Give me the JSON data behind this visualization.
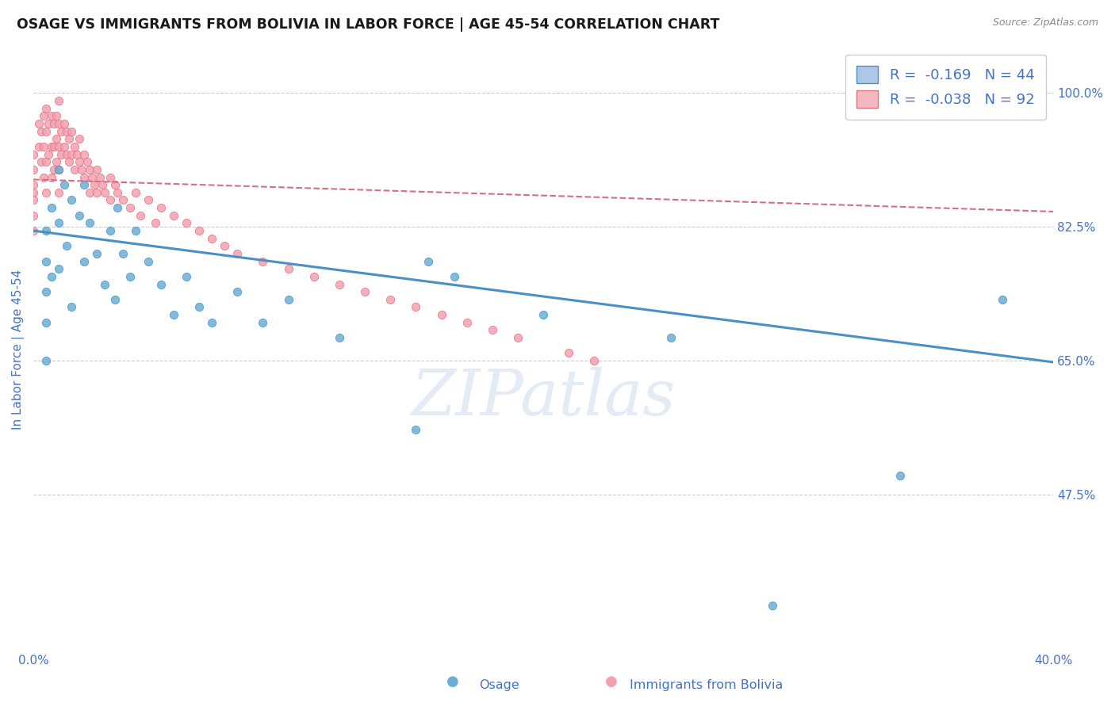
{
  "title": "OSAGE VS IMMIGRANTS FROM BOLIVIA IN LABOR FORCE | AGE 45-54 CORRELATION CHART",
  "source": "Source: ZipAtlas.com",
  "ylabel": "In Labor Force | Age 45-54",
  "xlim": [
    0.0,
    0.4
  ],
  "ylim": [
    0.27,
    1.06
  ],
  "xticks": [
    0.0,
    0.05,
    0.1,
    0.15,
    0.2,
    0.25,
    0.3,
    0.35,
    0.4
  ],
  "yticks": [
    0.475,
    0.65,
    0.825,
    1.0
  ],
  "ytick_labels": [
    "47.5%",
    "65.0%",
    "82.5%",
    "100.0%"
  ],
  "osage_color": "#6aaed6",
  "osage_edge": "#4a90c4",
  "bolivia_color": "#f4a0b0",
  "bolivia_edge": "#e07080",
  "trendline_blue_color": "#4a90c4",
  "trendline_pink_color": "#d47080",
  "grid_color": "#cccccc",
  "axis_color": "#4472c4",
  "background_color": "#ffffff",
  "watermark": "ZIPatlas",
  "legend_blue_face": "#aec6e8",
  "legend_blue_edge": "#4a90c4",
  "legend_pink_face": "#f4b8c1",
  "legend_pink_edge": "#e07080",
  "legend_text_color": "#4472c4",
  "osage_x": [
    0.005,
    0.005,
    0.005,
    0.005,
    0.005,
    0.007,
    0.007,
    0.01,
    0.01,
    0.01,
    0.012,
    0.013,
    0.015,
    0.015,
    0.018,
    0.02,
    0.02,
    0.022,
    0.025,
    0.028,
    0.03,
    0.032,
    0.033,
    0.035,
    0.038,
    0.04,
    0.045,
    0.05,
    0.055,
    0.06,
    0.065,
    0.07,
    0.08,
    0.09,
    0.1,
    0.12,
    0.15,
    0.155,
    0.165,
    0.2,
    0.25,
    0.29,
    0.34,
    0.38
  ],
  "osage_y": [
    0.82,
    0.78,
    0.74,
    0.7,
    0.65,
    0.85,
    0.76,
    0.9,
    0.83,
    0.77,
    0.88,
    0.8,
    0.86,
    0.72,
    0.84,
    0.88,
    0.78,
    0.83,
    0.79,
    0.75,
    0.82,
    0.73,
    0.85,
    0.79,
    0.76,
    0.82,
    0.78,
    0.75,
    0.71,
    0.76,
    0.72,
    0.7,
    0.74,
    0.7,
    0.73,
    0.68,
    0.56,
    0.78,
    0.76,
    0.71,
    0.68,
    0.33,
    0.5,
    0.73
  ],
  "bolivia_x": [
    0.0,
    0.0,
    0.0,
    0.0,
    0.0,
    0.0,
    0.0,
    0.002,
    0.002,
    0.003,
    0.003,
    0.004,
    0.004,
    0.004,
    0.005,
    0.005,
    0.005,
    0.005,
    0.006,
    0.006,
    0.007,
    0.007,
    0.007,
    0.008,
    0.008,
    0.008,
    0.009,
    0.009,
    0.009,
    0.01,
    0.01,
    0.01,
    0.01,
    0.01,
    0.011,
    0.011,
    0.012,
    0.012,
    0.013,
    0.013,
    0.014,
    0.014,
    0.015,
    0.015,
    0.016,
    0.016,
    0.017,
    0.018,
    0.018,
    0.019,
    0.02,
    0.02,
    0.021,
    0.022,
    0.022,
    0.023,
    0.024,
    0.025,
    0.025,
    0.026,
    0.027,
    0.028,
    0.03,
    0.03,
    0.032,
    0.033,
    0.035,
    0.038,
    0.04,
    0.042,
    0.045,
    0.048,
    0.05,
    0.055,
    0.06,
    0.065,
    0.07,
    0.075,
    0.08,
    0.09,
    0.1,
    0.11,
    0.12,
    0.13,
    0.14,
    0.15,
    0.16,
    0.17,
    0.18,
    0.19,
    0.21,
    0.22
  ],
  "bolivia_y": [
    0.92,
    0.9,
    0.88,
    0.87,
    0.86,
    0.84,
    0.82,
    0.96,
    0.93,
    0.95,
    0.91,
    0.97,
    0.93,
    0.89,
    0.98,
    0.95,
    0.91,
    0.87,
    0.96,
    0.92,
    0.97,
    0.93,
    0.89,
    0.96,
    0.93,
    0.9,
    0.97,
    0.94,
    0.91,
    0.99,
    0.96,
    0.93,
    0.9,
    0.87,
    0.95,
    0.92,
    0.96,
    0.93,
    0.95,
    0.92,
    0.94,
    0.91,
    0.95,
    0.92,
    0.93,
    0.9,
    0.92,
    0.94,
    0.91,
    0.9,
    0.92,
    0.89,
    0.91,
    0.9,
    0.87,
    0.89,
    0.88,
    0.9,
    0.87,
    0.89,
    0.88,
    0.87,
    0.89,
    0.86,
    0.88,
    0.87,
    0.86,
    0.85,
    0.87,
    0.84,
    0.86,
    0.83,
    0.85,
    0.84,
    0.83,
    0.82,
    0.81,
    0.8,
    0.79,
    0.78,
    0.77,
    0.76,
    0.75,
    0.74,
    0.73,
    0.72,
    0.71,
    0.7,
    0.69,
    0.68,
    0.66,
    0.65
  ],
  "osage_trend_x": [
    0.0,
    0.4
  ],
  "osage_trend_y": [
    0.82,
    0.648
  ],
  "bolivia_trend_x": [
    0.0,
    0.4
  ],
  "bolivia_trend_y": [
    0.887,
    0.845
  ]
}
